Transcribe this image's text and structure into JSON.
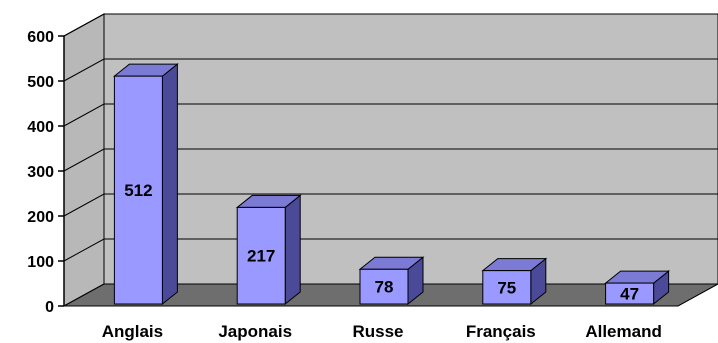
{
  "chart_data": {
    "type": "bar",
    "categories": [
      "Anglais",
      "Japonais",
      "Russe",
      "Français",
      "Allemand"
    ],
    "values": [
      512,
      217,
      78,
      75,
      47
    ],
    "value_labels": [
      "512",
      "217",
      "78",
      "75",
      "47"
    ],
    "y_ticks": [
      "0",
      "100",
      "200",
      "300",
      "400",
      "500",
      "600"
    ],
    "ylim": [
      0,
      600
    ],
    "grid": true,
    "style": "3d-column",
    "colors": {
      "bar_front": "#9999ff",
      "bar_side": "#4a4a99",
      "bar_top": "#7b7bd6",
      "back_wall": "#c0c0c0",
      "side_wall": "#b8b8b8",
      "floor": "#6e6e6e",
      "grid": "#000000"
    }
  }
}
